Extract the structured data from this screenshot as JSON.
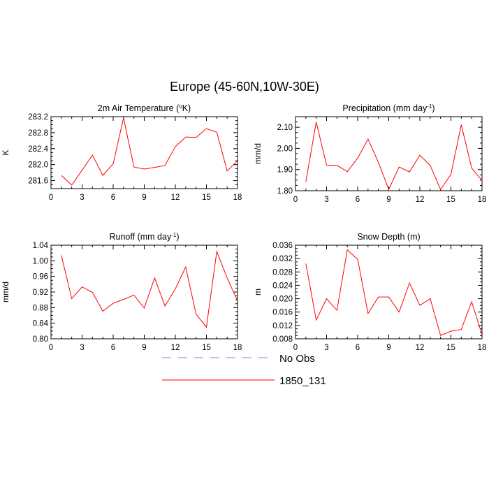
{
  "figure_title": "Europe (45-60N,10W-30E)",
  "legend": [
    {
      "label": "No Obs",
      "color": "#7f7fff",
      "style": "dashed"
    },
    {
      "label": "1850_131",
      "color": "#ff0000",
      "style": "solid"
    }
  ],
  "chart_data": [
    {
      "type": "line",
      "title_main": "2m Air Temperature (",
      "title_sup": "o",
      "title_end": "K)",
      "ylabel": "K",
      "xlim": [
        0,
        18
      ],
      "ylim": [
        281.4,
        283.2
      ],
      "x_ticks": [
        "0",
        "3",
        "6",
        "9",
        "12",
        "15",
        "18"
      ],
      "y_ticks": [
        "281.6",
        "282.0",
        "282.4",
        "282.8",
        "283.2"
      ],
      "y_tick_values": [
        281.6,
        282.0,
        282.4,
        282.8,
        283.2
      ],
      "series": [
        {
          "name": "1850_131",
          "x": [
            1,
            2,
            3,
            4,
            5,
            6,
            7,
            8,
            9,
            10,
            11,
            12,
            13,
            14,
            15,
            16,
            17,
            18
          ],
          "values": [
            281.73,
            281.49,
            281.86,
            282.24,
            281.73,
            282.02,
            283.17,
            281.94,
            281.89,
            281.93,
            281.98,
            282.45,
            282.69,
            282.68,
            282.9,
            282.81,
            281.84,
            282.1
          ]
        }
      ]
    },
    {
      "type": "line",
      "title_main": "Precipitation (mm day",
      "title_sup": "-1",
      "title_end": ")",
      "ylabel": "mm/d",
      "xlim": [
        0,
        18
      ],
      "ylim": [
        1.8,
        2.15
      ],
      "x_ticks": [
        "0",
        "3",
        "6",
        "9",
        "12",
        "15",
        "18"
      ],
      "y_ticks": [
        "1.80",
        "1.90",
        "2.00",
        "2.10"
      ],
      "y_tick_values": [
        1.8,
        1.9,
        2.0,
        2.1
      ],
      "series": [
        {
          "name": "1850_131",
          "x": [
            1,
            2,
            3,
            4,
            5,
            6,
            7,
            8,
            9,
            10,
            11,
            12,
            13,
            14,
            15,
            16,
            17,
            18
          ],
          "values": [
            1.843,
            2.124,
            1.921,
            1.92,
            1.89,
            1.954,
            2.044,
            1.934,
            1.806,
            1.912,
            1.889,
            1.968,
            1.919,
            1.806,
            1.877,
            2.112,
            1.907,
            1.848
          ]
        }
      ]
    },
    {
      "type": "line",
      "title_main": "Runoff (mm day",
      "title_sup": "-1",
      "title_end": ")",
      "ylabel": "mm/d",
      "xlim": [
        0,
        18
      ],
      "ylim": [
        0.8,
        1.04
      ],
      "x_ticks": [
        "0",
        "3",
        "6",
        "9",
        "12",
        "15",
        "18"
      ],
      "y_ticks": [
        "0.80",
        "0.84",
        "0.88",
        "0.92",
        "0.96",
        "1.00",
        "1.04"
      ],
      "y_tick_values": [
        0.8,
        0.84,
        0.88,
        0.92,
        0.96,
        1.0,
        1.04
      ],
      "series": [
        {
          "name": "1850_131",
          "x": [
            1,
            2,
            3,
            4,
            5,
            6,
            7,
            8,
            9,
            10,
            11,
            12,
            13,
            14,
            15,
            16,
            17,
            18
          ],
          "values": [
            1.014,
            0.903,
            0.933,
            0.919,
            0.871,
            0.891,
            0.901,
            0.912,
            0.879,
            0.956,
            0.884,
            0.928,
            0.984,
            0.863,
            0.83,
            1.024,
            0.956,
            0.897
          ]
        }
      ]
    },
    {
      "type": "line",
      "title_main": "Snow Depth (m)",
      "title_sup": "",
      "title_end": "",
      "ylabel": "m",
      "xlim": [
        0,
        18
      ],
      "ylim": [
        0.008,
        0.036
      ],
      "x_ticks": [
        "0",
        "3",
        "6",
        "9",
        "12",
        "15",
        "18"
      ],
      "y_ticks": [
        "0.008",
        "0.012",
        "0.016",
        "0.020",
        "0.024",
        "0.028",
        "0.032",
        "0.036"
      ],
      "y_tick_values": [
        0.008,
        0.012,
        0.016,
        0.02,
        0.024,
        0.028,
        0.032,
        0.036
      ],
      "series": [
        {
          "name": "1850_131",
          "x": [
            1,
            2,
            3,
            4,
            5,
            6,
            7,
            8,
            9,
            10,
            11,
            12,
            13,
            14,
            15,
            16,
            17,
            18
          ],
          "values": [
            0.0305,
            0.0136,
            0.02,
            0.0165,
            0.0346,
            0.0318,
            0.0156,
            0.0205,
            0.0205,
            0.016,
            0.0247,
            0.018,
            0.02,
            0.009,
            0.0103,
            0.0108,
            0.0191,
            0.0092
          ]
        }
      ]
    }
  ]
}
